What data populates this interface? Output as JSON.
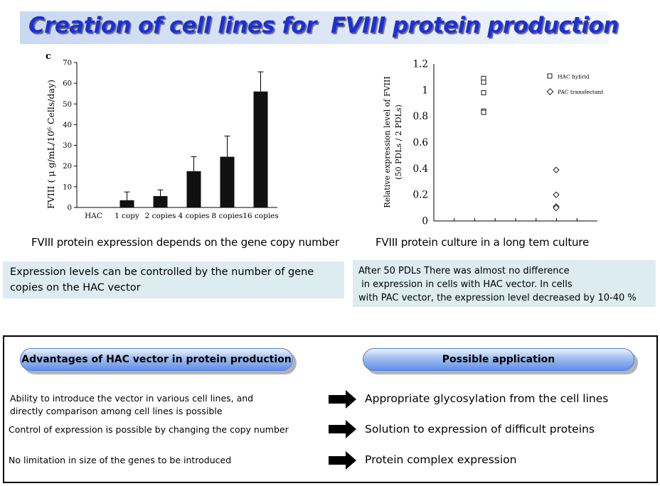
{
  "title": "Creation of cell lines for  FVIII protein production",
  "chart_data": [
    {
      "type": "bar",
      "panel_label": "c",
      "ylabel": "FVIII ( μ g/mL/10⁶ Cells/day)",
      "categories": [
        "HAC",
        "1 copy",
        "2 copies",
        "4 copies",
        "8 copies",
        "16 copies"
      ],
      "values": [
        0,
        3.5,
        5.5,
        17.5,
        24.5,
        56
      ],
      "error": [
        0,
        4,
        3,
        7,
        10,
        9.5
      ],
      "ylim": [
        0,
        70
      ],
      "yticks": [
        "0",
        "10",
        "20",
        "30",
        "40",
        "50",
        "60",
        "70"
      ]
    },
    {
      "type": "scatter",
      "ylabel": "Relative expression level of FVIII",
      "ylabel2": "(50 PDLs / 2 PDLs)",
      "ylim": [
        0,
        1.2
      ],
      "yticks": [
        "0",
        "0.2",
        "0.4",
        "0.6",
        "0.8",
        "1",
        "1.2"
      ],
      "legend_position": "top-right",
      "series": [
        {
          "name": "HAC hybrid",
          "marker": "square",
          "values": [
            1.09,
            1.06,
            0.98,
            0.84,
            0.83
          ]
        },
        {
          "name": "PAC transfectant",
          "marker": "diamond",
          "values": [
            0.39,
            0.2,
            0.11,
            0.1
          ]
        }
      ]
    }
  ],
  "captions": {
    "left": "FVIII protein expression depends on the gene copy number",
    "right": "FVIII protein culture in a long tem culture"
  },
  "notes": {
    "left": "Expression levels can be controlled by the number of gene copies on the HAC vector",
    "right_line1": "After 50 PDLs There was almost no difference",
    "right_line2": " in expression in cells with HAC vector. In cells",
    "right_line3": "with PAC vector, the expression level decreased by 10-40 %"
  },
  "panel": {
    "advantages_title": "Advantages of HAC vector in protein production",
    "applications_title": "Possible application",
    "advantages": [
      "Ability to introduce the vector in various cell lines, and",
      "directly comparison among cell lines is possible",
      "Control of expression is possible by changing the copy number",
      "No limitation in size of the genes to be introduced"
    ],
    "applications": [
      "Appropriate glycosylation from the cell lines",
      "Solution to expression of difficult proteins",
      "Protein complex expression"
    ]
  }
}
